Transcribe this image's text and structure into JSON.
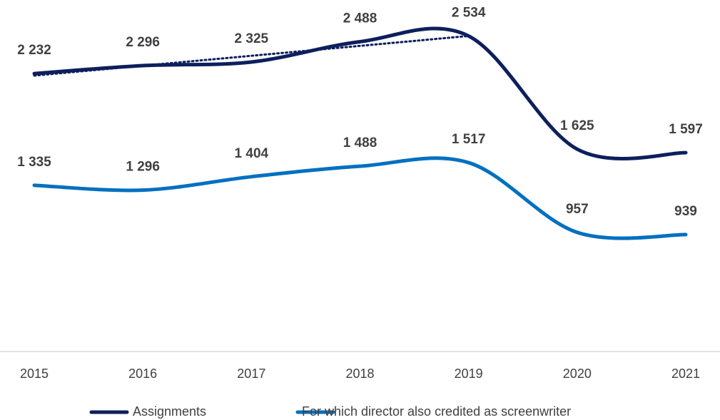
{
  "chart_data": {
    "type": "line",
    "categories": [
      "2015",
      "2016",
      "2017",
      "2018",
      "2019",
      "2020",
      "2021"
    ],
    "series": [
      {
        "name": "Assignments",
        "color": "#0d1f5c",
        "values": [
          2232,
          2296,
          2325,
          2488,
          2534,
          1625,
          1597
        ],
        "value_labels": [
          "2 232",
          "2 296",
          "2 325",
          "2 488",
          "2 534",
          "1 625",
          "1 597"
        ]
      },
      {
        "name": "For which director also credited as screenwriter",
        "color": "#0070c0",
        "values": [
          1335,
          1296,
          1404,
          1488,
          1517,
          957,
          939
        ],
        "value_labels": [
          "1 335",
          "1 296",
          "1 404",
          "1 488",
          "1 517",
          "957",
          "939"
        ]
      }
    ],
    "trendline": {
      "series": "Assignments",
      "categories": [
        "2015",
        "2019"
      ],
      "style": "dotted"
    },
    "ylim": [
      0,
      2800
    ],
    "smooth": true,
    "legend": "bottom"
  }
}
